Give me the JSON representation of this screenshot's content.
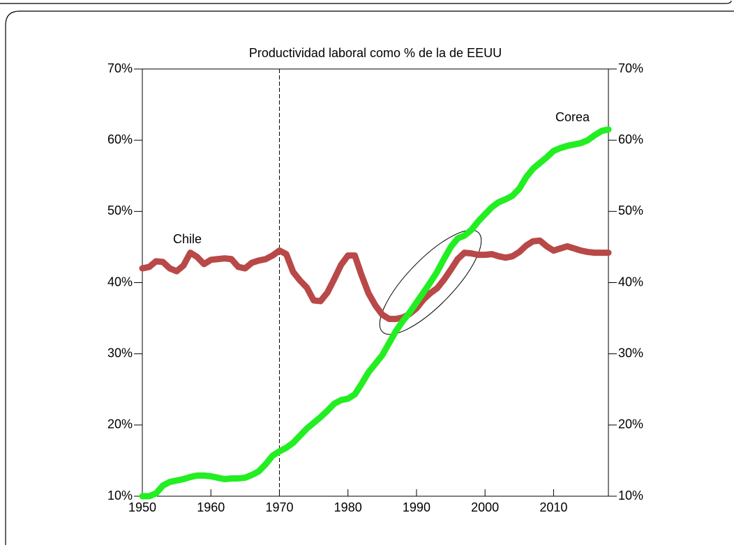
{
  "chart_data": {
    "type": "line",
    "title": "Productividad laboral como % de la de EEUU",
    "x": [
      1950,
      1951,
      1952,
      1953,
      1954,
      1955,
      1956,
      1957,
      1958,
      1959,
      1960,
      1961,
      1962,
      1963,
      1964,
      1965,
      1966,
      1967,
      1968,
      1969,
      1970,
      1971,
      1972,
      1973,
      1974,
      1975,
      1976,
      1977,
      1978,
      1979,
      1980,
      1981,
      1982,
      1983,
      1984,
      1985,
      1986,
      1987,
      1988,
      1989,
      1990,
      1991,
      1992,
      1993,
      1994,
      1995,
      1996,
      1997,
      1998,
      1999,
      2000,
      2001,
      2002,
      2003,
      2004,
      2005,
      2006,
      2007,
      2008,
      2009,
      2010,
      2011,
      2012,
      2013,
      2014,
      2015,
      2016,
      2017,
      2018
    ],
    "series": [
      {
        "name": "Chile",
        "color": "#b94848",
        "values": [
          42,
          42.2,
          43,
          42.9,
          42,
          41.6,
          42.4,
          44.2,
          43.6,
          42.6,
          43.2,
          43.3,
          43.4,
          43.3,
          42.2,
          42,
          42.8,
          43.1,
          43.3,
          43.8,
          44.5,
          44,
          41.5,
          40.3,
          39.3,
          37.5,
          37.4,
          38.6,
          40.5,
          42.5,
          43.8,
          43.8,
          41,
          38.5,
          36.8,
          35.5,
          34.9,
          34.9,
          35.1,
          35.6,
          36.4,
          37.6,
          38.5,
          39.2,
          40.4,
          41.8,
          43.3,
          44.2,
          44.1,
          43.9,
          43.9,
          44,
          43.7,
          43.5,
          43.7,
          44.3,
          45.2,
          45.8,
          45.9,
          45.1,
          44.5,
          44.8,
          45.1,
          44.8,
          44.5,
          44.3,
          44.2,
          44.2,
          44.2
        ]
      },
      {
        "name": "Corea",
        "color": "#22ee22",
        "values": [
          10,
          10,
          10.4,
          11.5,
          12,
          12.2,
          12.4,
          12.7,
          12.9,
          12.9,
          12.8,
          12.6,
          12.4,
          12.5,
          12.5,
          12.6,
          13,
          13.5,
          14.5,
          15.7,
          16.3,
          16.8,
          17.5,
          18.5,
          19.5,
          20.3,
          21.1,
          22,
          23,
          23.5,
          23.7,
          24.3,
          25.8,
          27.4,
          28.6,
          29.8,
          31.5,
          33.2,
          34.6,
          35.8,
          37.2,
          38.6,
          40,
          41.5,
          43.3,
          45,
          46.2,
          46.6,
          47.4,
          48.6,
          49.6,
          50.6,
          51.3,
          51.7,
          52.2,
          53.2,
          54.8,
          56,
          56.8,
          57.6,
          58.5,
          58.9,
          59.2,
          59.4,
          59.6,
          60,
          60.7,
          61.3,
          61.5
        ]
      }
    ],
    "xlim": [
      1950,
      2018
    ],
    "xticks": [
      1950,
      1960,
      1970,
      1980,
      1990,
      2000,
      2010
    ],
    "ylim": [
      10,
      70
    ],
    "yticks": [
      {
        "value": 10,
        "label": "10%"
      },
      {
        "value": 20,
        "label": "20%"
      },
      {
        "value": 30,
        "label": "30%"
      },
      {
        "value": 40,
        "label": "40%"
      },
      {
        "value": 50,
        "label": "50%"
      },
      {
        "value": 60,
        "label": "60%"
      },
      {
        "value": 70,
        "label": "70%"
      }
    ],
    "vline": 1970
  }
}
